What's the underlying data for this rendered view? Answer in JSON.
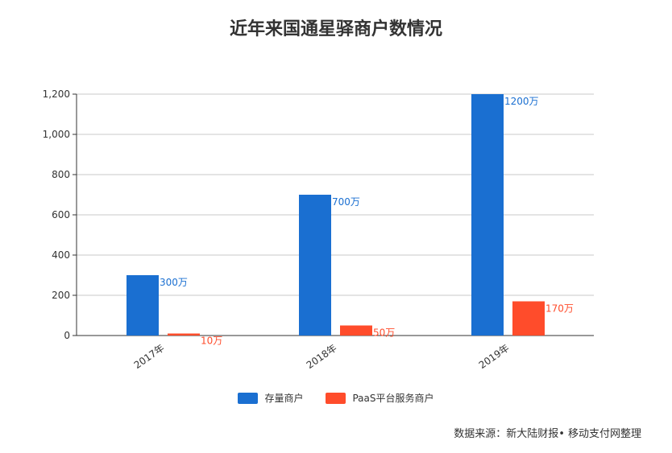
{
  "chart_data": {
    "type": "bar",
    "title": "近年来国通星驿商户数情况",
    "categories": [
      "2017年",
      "2018年",
      "2019年"
    ],
    "series": [
      {
        "name": "存量商户",
        "values": [
          300,
          700,
          1200
        ],
        "labels": [
          "300万",
          "700万",
          "1200万"
        ],
        "color": "#1a6fd1"
      },
      {
        "name": "PaaS平台服务商户",
        "values": [
          10,
          50,
          170
        ],
        "labels": [
          "10万",
          "50万",
          "170万"
        ],
        "color": "#ff4c2b"
      }
    ],
    "ylim": [
      0,
      1200
    ],
    "yticks": [
      "0",
      "200",
      "400",
      "600",
      "800",
      "1,000",
      "1,200"
    ],
    "ytick_values": [
      0,
      200,
      400,
      600,
      800,
      1000,
      1200
    ],
    "grid": true,
    "legend_position": "bottom"
  },
  "source": "数据来源：新大陆财报• 移动支付网整理"
}
